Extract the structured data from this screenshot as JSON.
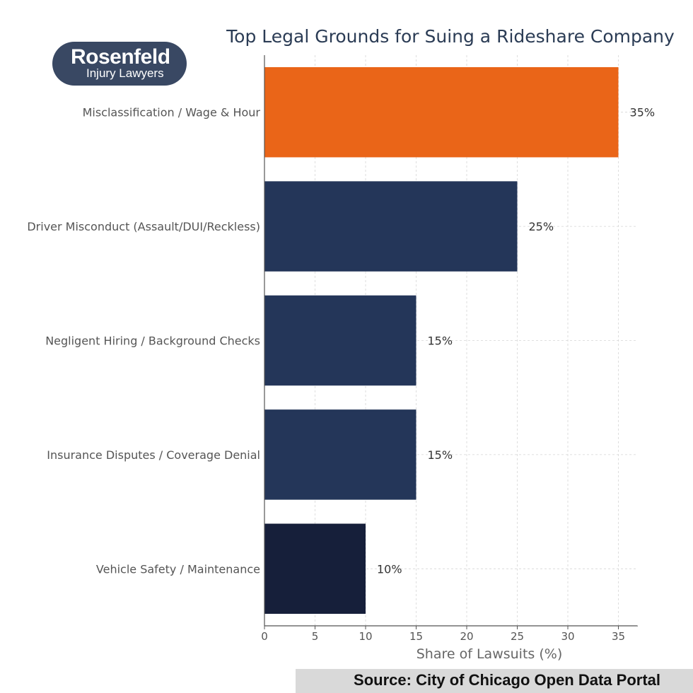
{
  "logo": {
    "brand": "Rosenfeld",
    "subtitle": "Injury Lawyers"
  },
  "source": "Source: City of Chicago Open Data Portal",
  "chart_data": {
    "type": "bar",
    "orientation": "horizontal",
    "title": "Top Legal Grounds for Suing a Rideshare Company",
    "xlabel": "Share of Lawsuits (%)",
    "ylabel": "",
    "xlim": [
      0,
      37
    ],
    "xticks": [
      0,
      5,
      10,
      15,
      20,
      25,
      30,
      35
    ],
    "grid": true,
    "categories": [
      "Misclassification / Wage & Hour",
      "Driver Misconduct (Assault/DUI/Reckless)",
      "Negligent Hiring / Background Checks",
      "Insurance Disputes / Coverage Denial",
      "Vehicle Safety / Maintenance"
    ],
    "values": [
      35,
      25,
      15,
      15,
      10
    ],
    "value_labels": [
      "35%",
      "25%",
      "15%",
      "15%",
      "10%"
    ],
    "colors": [
      "#EA6518",
      "#243659",
      "#243659",
      "#243659",
      "#161F3A"
    ]
  }
}
